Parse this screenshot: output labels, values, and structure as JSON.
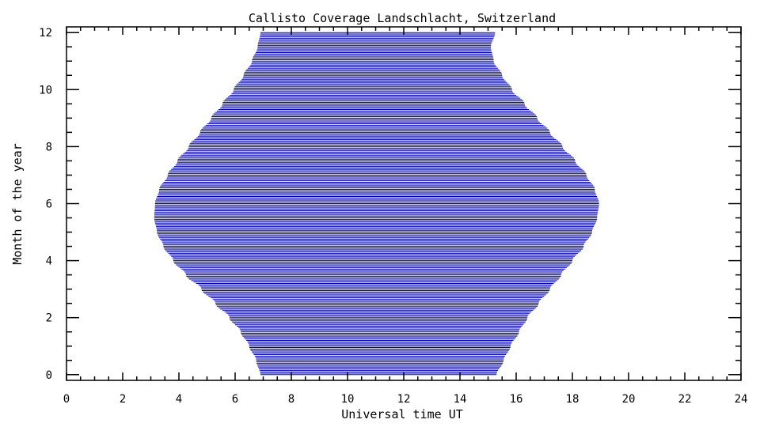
{
  "chart_data": {
    "type": "area",
    "title": "Callisto Coverage Landschlacht, Switzerland",
    "xlabel": "Universal time UT",
    "ylabel": "Month of the year",
    "xlim": [
      0,
      24
    ],
    "ylim": [
      -0.2,
      12.2
    ],
    "xticks": [
      0,
      2,
      4,
      6,
      8,
      10,
      12,
      14,
      16,
      18,
      20,
      22,
      24
    ],
    "yticks": [
      0,
      2,
      4,
      6,
      8,
      10,
      12
    ],
    "x_minor_step": 0.5,
    "y_minor_step": 0.5,
    "fill_style": "horizontal lines",
    "line_spacing_months": 0.05,
    "color": "#0000aa",
    "series": [
      {
        "month": 0.0,
        "start": 6.9,
        "end": 15.3
      },
      {
        "month": 0.5,
        "start": 6.75,
        "end": 15.55
      },
      {
        "month": 1.0,
        "start": 6.5,
        "end": 15.8
      },
      {
        "month": 1.5,
        "start": 6.2,
        "end": 16.1
      },
      {
        "month": 2.0,
        "start": 5.8,
        "end": 16.4
      },
      {
        "month": 2.5,
        "start": 5.3,
        "end": 16.8
      },
      {
        "month": 3.0,
        "start": 4.8,
        "end": 17.2
      },
      {
        "month": 3.5,
        "start": 4.25,
        "end": 17.6
      },
      {
        "month": 4.0,
        "start": 3.8,
        "end": 18.0
      },
      {
        "month": 4.5,
        "start": 3.45,
        "end": 18.4
      },
      {
        "month": 5.0,
        "start": 3.22,
        "end": 18.7
      },
      {
        "month": 5.5,
        "start": 3.12,
        "end": 18.88
      },
      {
        "month": 6.0,
        "start": 3.15,
        "end": 18.95
      },
      {
        "month": 6.5,
        "start": 3.3,
        "end": 18.8
      },
      {
        "month": 7.0,
        "start": 3.6,
        "end": 18.5
      },
      {
        "month": 7.5,
        "start": 3.95,
        "end": 18.1
      },
      {
        "month": 8.0,
        "start": 4.35,
        "end": 17.65
      },
      {
        "month": 8.5,
        "start": 4.75,
        "end": 17.2
      },
      {
        "month": 9.0,
        "start": 5.15,
        "end": 16.75
      },
      {
        "month": 9.5,
        "start": 5.55,
        "end": 16.3
      },
      {
        "month": 10.0,
        "start": 5.95,
        "end": 15.85
      },
      {
        "month": 10.5,
        "start": 6.3,
        "end": 15.5
      },
      {
        "month": 11.0,
        "start": 6.6,
        "end": 15.2
      },
      {
        "month": 11.5,
        "start": 6.8,
        "end": 15.1
      },
      {
        "month": 12.0,
        "start": 6.9,
        "end": 15.25
      }
    ]
  }
}
